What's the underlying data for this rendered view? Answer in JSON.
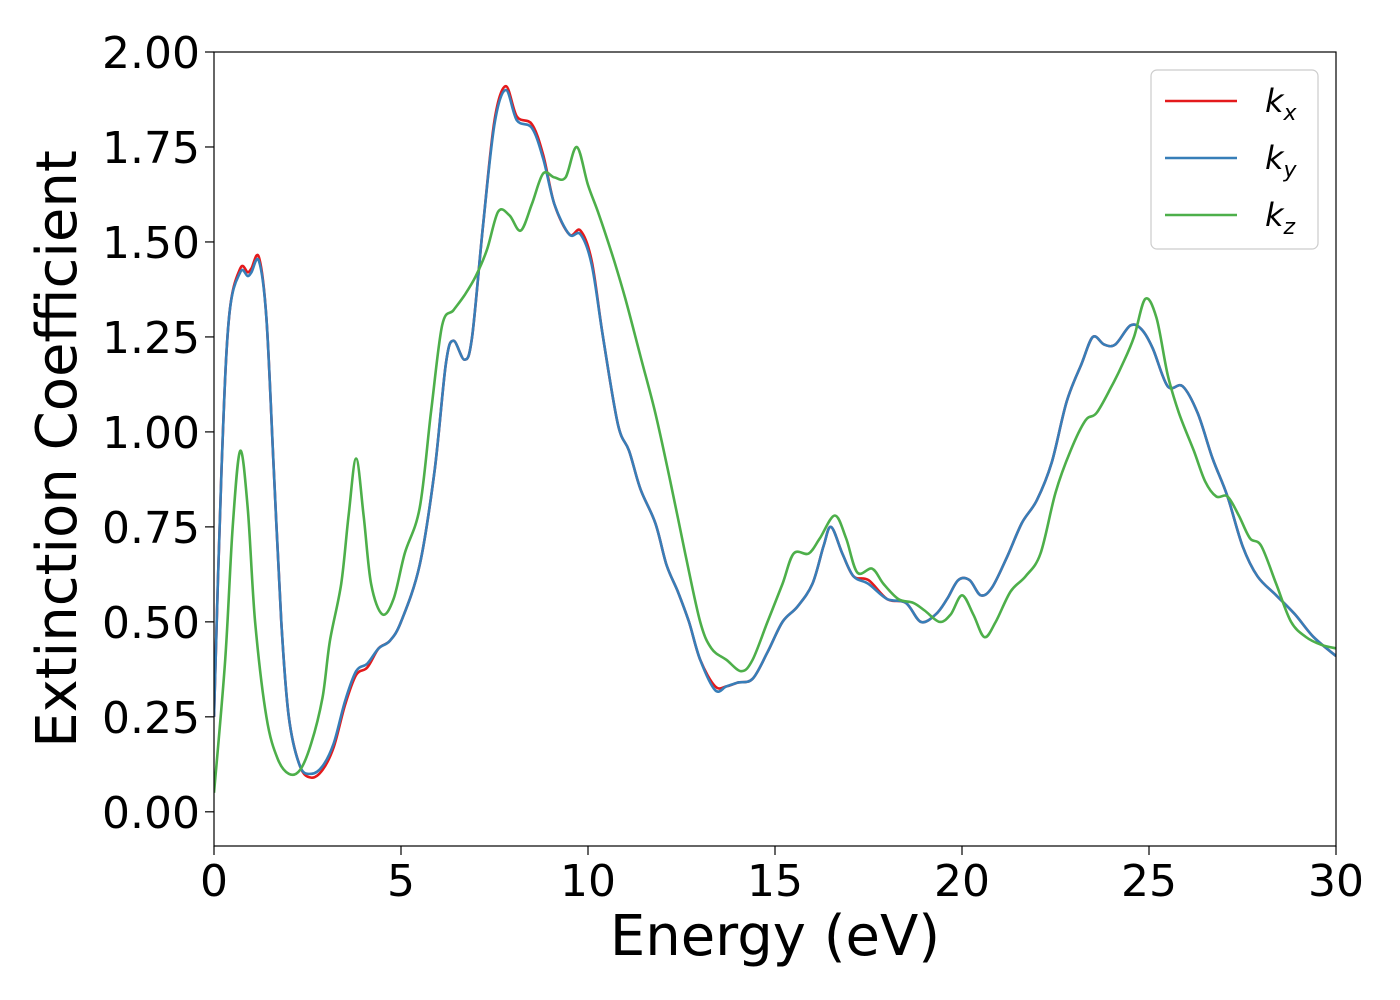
{
  "chart_data": {
    "type": "line",
    "title": "",
    "xlabel": "Energy (eV)",
    "ylabel": "Extinction Coefficient",
    "xlim": [
      0,
      30
    ],
    "ylim": [
      -0.09,
      2.0
    ],
    "xticks": [
      0,
      5,
      10,
      15,
      20,
      25,
      30
    ],
    "xtick_labels": [
      "0",
      "5",
      "10",
      "15",
      "20",
      "25",
      "30"
    ],
    "yticks": [
      0.0,
      0.25,
      0.5,
      0.75,
      1.0,
      1.25,
      1.5,
      1.75,
      2.0
    ],
    "ytick_labels": [
      "0.00",
      "0.25",
      "0.50",
      "0.75",
      "1.00",
      "1.25",
      "1.50",
      "1.75",
      "2.00"
    ],
    "grid": false,
    "legend_position": "top-right",
    "series": [
      {
        "name": "k",
        "subscript": "x",
        "color": "#e41a1c",
        "points": [
          [
            0,
            0.25
          ],
          [
            0.2,
            0.9
          ],
          [
            0.4,
            1.3
          ],
          [
            0.7,
            1.43
          ],
          [
            0.9,
            1.42
          ],
          [
            1.0,
            1.43
          ],
          [
            1.2,
            1.46
          ],
          [
            1.4,
            1.3
          ],
          [
            1.6,
            0.9
          ],
          [
            1.8,
            0.5
          ],
          [
            2.0,
            0.25
          ],
          [
            2.3,
            0.12
          ],
          [
            2.6,
            0.09
          ],
          [
            2.9,
            0.11
          ],
          [
            3.2,
            0.17
          ],
          [
            3.5,
            0.28
          ],
          [
            3.8,
            0.36
          ],
          [
            4.1,
            0.38
          ],
          [
            4.4,
            0.43
          ],
          [
            4.7,
            0.45
          ],
          [
            5.0,
            0.5
          ],
          [
            5.5,
            0.65
          ],
          [
            5.9,
            0.9
          ],
          [
            6.2,
            1.18
          ],
          [
            6.4,
            1.24
          ],
          [
            6.7,
            1.19
          ],
          [
            6.9,
            1.25
          ],
          [
            7.2,
            1.55
          ],
          [
            7.5,
            1.82
          ],
          [
            7.8,
            1.91
          ],
          [
            8.1,
            1.83
          ],
          [
            8.5,
            1.81
          ],
          [
            8.8,
            1.73
          ],
          [
            9.1,
            1.6
          ],
          [
            9.5,
            1.52
          ],
          [
            9.8,
            1.53
          ],
          [
            10.1,
            1.45
          ],
          [
            10.4,
            1.25
          ],
          [
            10.8,
            1.02
          ],
          [
            11.1,
            0.95
          ],
          [
            11.4,
            0.85
          ],
          [
            11.8,
            0.76
          ],
          [
            12.1,
            0.65
          ],
          [
            12.4,
            0.58
          ],
          [
            12.7,
            0.5
          ],
          [
            13.0,
            0.4
          ],
          [
            13.4,
            0.33
          ],
          [
            13.7,
            0.33
          ],
          [
            14.0,
            0.34
          ],
          [
            14.4,
            0.35
          ],
          [
            14.8,
            0.42
          ],
          [
            15.2,
            0.5
          ],
          [
            15.6,
            0.54
          ],
          [
            16.0,
            0.6
          ],
          [
            16.3,
            0.7
          ],
          [
            16.5,
            0.75
          ],
          [
            16.8,
            0.68
          ],
          [
            17.1,
            0.62
          ],
          [
            17.5,
            0.61
          ],
          [
            18.0,
            0.56
          ],
          [
            18.5,
            0.55
          ],
          [
            18.9,
            0.5
          ],
          [
            19.3,
            0.52
          ],
          [
            19.6,
            0.56
          ],
          [
            19.9,
            0.61
          ],
          [
            20.2,
            0.61
          ],
          [
            20.5,
            0.57
          ],
          [
            20.8,
            0.59
          ],
          [
            21.2,
            0.67
          ],
          [
            21.6,
            0.76
          ],
          [
            22.0,
            0.82
          ],
          [
            22.4,
            0.92
          ],
          [
            22.8,
            1.08
          ],
          [
            23.2,
            1.18
          ],
          [
            23.5,
            1.25
          ],
          [
            23.8,
            1.23
          ],
          [
            24.1,
            1.23
          ],
          [
            24.5,
            1.28
          ],
          [
            24.8,
            1.27
          ],
          [
            25.1,
            1.22
          ],
          [
            25.5,
            1.12
          ],
          [
            25.9,
            1.12
          ],
          [
            26.3,
            1.05
          ],
          [
            26.7,
            0.93
          ],
          [
            27.1,
            0.83
          ],
          [
            27.5,
            0.7
          ],
          [
            27.9,
            0.62
          ],
          [
            28.4,
            0.57
          ],
          [
            28.9,
            0.52
          ],
          [
            29.4,
            0.46
          ],
          [
            30.0,
            0.41
          ]
        ]
      },
      {
        "name": "k",
        "subscript": "y",
        "color": "#377eb8",
        "points": [
          [
            0,
            0.25
          ],
          [
            0.2,
            0.9
          ],
          [
            0.4,
            1.3
          ],
          [
            0.7,
            1.42
          ],
          [
            0.9,
            1.41
          ],
          [
            1.0,
            1.42
          ],
          [
            1.2,
            1.45
          ],
          [
            1.4,
            1.3
          ],
          [
            1.6,
            0.9
          ],
          [
            1.8,
            0.5
          ],
          [
            2.0,
            0.25
          ],
          [
            2.3,
            0.12
          ],
          [
            2.6,
            0.1
          ],
          [
            2.9,
            0.12
          ],
          [
            3.2,
            0.18
          ],
          [
            3.5,
            0.29
          ],
          [
            3.8,
            0.37
          ],
          [
            4.1,
            0.39
          ],
          [
            4.4,
            0.43
          ],
          [
            4.7,
            0.45
          ],
          [
            5.0,
            0.5
          ],
          [
            5.5,
            0.65
          ],
          [
            5.9,
            0.9
          ],
          [
            6.2,
            1.18
          ],
          [
            6.4,
            1.24
          ],
          [
            6.7,
            1.19
          ],
          [
            6.9,
            1.25
          ],
          [
            7.2,
            1.55
          ],
          [
            7.5,
            1.81
          ],
          [
            7.8,
            1.9
          ],
          [
            8.1,
            1.82
          ],
          [
            8.5,
            1.8
          ],
          [
            8.8,
            1.72
          ],
          [
            9.1,
            1.6
          ],
          [
            9.5,
            1.52
          ],
          [
            9.8,
            1.52
          ],
          [
            10.1,
            1.44
          ],
          [
            10.4,
            1.25
          ],
          [
            10.8,
            1.02
          ],
          [
            11.1,
            0.95
          ],
          [
            11.4,
            0.85
          ],
          [
            11.8,
            0.76
          ],
          [
            12.1,
            0.65
          ],
          [
            12.4,
            0.58
          ],
          [
            12.7,
            0.5
          ],
          [
            13.0,
            0.4
          ],
          [
            13.4,
            0.32
          ],
          [
            13.7,
            0.33
          ],
          [
            14.0,
            0.34
          ],
          [
            14.4,
            0.35
          ],
          [
            14.8,
            0.42
          ],
          [
            15.2,
            0.5
          ],
          [
            15.6,
            0.54
          ],
          [
            16.0,
            0.6
          ],
          [
            16.3,
            0.7
          ],
          [
            16.5,
            0.75
          ],
          [
            16.8,
            0.68
          ],
          [
            17.1,
            0.62
          ],
          [
            17.5,
            0.6
          ],
          [
            18.0,
            0.56
          ],
          [
            18.5,
            0.55
          ],
          [
            18.9,
            0.5
          ],
          [
            19.3,
            0.52
          ],
          [
            19.6,
            0.56
          ],
          [
            19.9,
            0.61
          ],
          [
            20.2,
            0.61
          ],
          [
            20.5,
            0.57
          ],
          [
            20.8,
            0.59
          ],
          [
            21.2,
            0.67
          ],
          [
            21.6,
            0.76
          ],
          [
            22.0,
            0.82
          ],
          [
            22.4,
            0.92
          ],
          [
            22.8,
            1.08
          ],
          [
            23.2,
            1.18
          ],
          [
            23.5,
            1.25
          ],
          [
            23.8,
            1.23
          ],
          [
            24.1,
            1.23
          ],
          [
            24.5,
            1.28
          ],
          [
            24.8,
            1.27
          ],
          [
            25.1,
            1.22
          ],
          [
            25.5,
            1.12
          ],
          [
            25.9,
            1.12
          ],
          [
            26.3,
            1.05
          ],
          [
            26.7,
            0.93
          ],
          [
            27.1,
            0.83
          ],
          [
            27.5,
            0.7
          ],
          [
            27.9,
            0.62
          ],
          [
            28.4,
            0.57
          ],
          [
            28.9,
            0.52
          ],
          [
            29.4,
            0.46
          ],
          [
            30.0,
            0.41
          ]
        ]
      },
      {
        "name": "k",
        "subscript": "z",
        "color": "#4daf4a",
        "points": [
          [
            0,
            0.05
          ],
          [
            0.3,
            0.4
          ],
          [
            0.5,
            0.75
          ],
          [
            0.7,
            0.95
          ],
          [
            0.9,
            0.8
          ],
          [
            1.1,
            0.5
          ],
          [
            1.4,
            0.25
          ],
          [
            1.7,
            0.14
          ],
          [
            2.0,
            0.1
          ],
          [
            2.3,
            0.11
          ],
          [
            2.6,
            0.18
          ],
          [
            2.9,
            0.3
          ],
          [
            3.1,
            0.45
          ],
          [
            3.4,
            0.6
          ],
          [
            3.6,
            0.78
          ],
          [
            3.8,
            0.93
          ],
          [
            4.0,
            0.78
          ],
          [
            4.2,
            0.6
          ],
          [
            4.5,
            0.52
          ],
          [
            4.8,
            0.56
          ],
          [
            5.1,
            0.68
          ],
          [
            5.5,
            0.8
          ],
          [
            5.8,
            1.05
          ],
          [
            6.1,
            1.28
          ],
          [
            6.4,
            1.32
          ],
          [
            6.7,
            1.36
          ],
          [
            7.0,
            1.41
          ],
          [
            7.3,
            1.48
          ],
          [
            7.6,
            1.58
          ],
          [
            7.9,
            1.57
          ],
          [
            8.2,
            1.53
          ],
          [
            8.5,
            1.6
          ],
          [
            8.8,
            1.68
          ],
          [
            9.1,
            1.67
          ],
          [
            9.4,
            1.67
          ],
          [
            9.7,
            1.75
          ],
          [
            10.0,
            1.65
          ],
          [
            10.3,
            1.57
          ],
          [
            10.7,
            1.45
          ],
          [
            11.0,
            1.35
          ],
          [
            11.4,
            1.2
          ],
          [
            11.8,
            1.05
          ],
          [
            12.2,
            0.87
          ],
          [
            12.6,
            0.68
          ],
          [
            13.0,
            0.5
          ],
          [
            13.3,
            0.43
          ],
          [
            13.7,
            0.4
          ],
          [
            14.1,
            0.37
          ],
          [
            14.4,
            0.4
          ],
          [
            14.8,
            0.5
          ],
          [
            15.2,
            0.6
          ],
          [
            15.5,
            0.68
          ],
          [
            15.9,
            0.68
          ],
          [
            16.2,
            0.72
          ],
          [
            16.6,
            0.78
          ],
          [
            16.9,
            0.72
          ],
          [
            17.2,
            0.63
          ],
          [
            17.6,
            0.64
          ],
          [
            17.9,
            0.6
          ],
          [
            18.3,
            0.56
          ],
          [
            18.7,
            0.55
          ],
          [
            19.0,
            0.53
          ],
          [
            19.4,
            0.5
          ],
          [
            19.7,
            0.52
          ],
          [
            20.0,
            0.57
          ],
          [
            20.3,
            0.52
          ],
          [
            20.6,
            0.46
          ],
          [
            20.9,
            0.5
          ],
          [
            21.3,
            0.58
          ],
          [
            21.7,
            0.62
          ],
          [
            22.1,
            0.68
          ],
          [
            22.5,
            0.84
          ],
          [
            22.9,
            0.95
          ],
          [
            23.3,
            1.03
          ],
          [
            23.6,
            1.05
          ],
          [
            24.0,
            1.12
          ],
          [
            24.3,
            1.18
          ],
          [
            24.6,
            1.25
          ],
          [
            24.9,
            1.35
          ],
          [
            25.2,
            1.3
          ],
          [
            25.5,
            1.15
          ],
          [
            25.8,
            1.05
          ],
          [
            26.2,
            0.95
          ],
          [
            26.5,
            0.87
          ],
          [
            26.8,
            0.83
          ],
          [
            27.1,
            0.83
          ],
          [
            27.4,
            0.78
          ],
          [
            27.7,
            0.72
          ],
          [
            28.0,
            0.7
          ],
          [
            28.4,
            0.6
          ],
          [
            28.8,
            0.5
          ],
          [
            29.2,
            0.46
          ],
          [
            29.6,
            0.44
          ],
          [
            30.0,
            0.43
          ]
        ]
      }
    ]
  }
}
